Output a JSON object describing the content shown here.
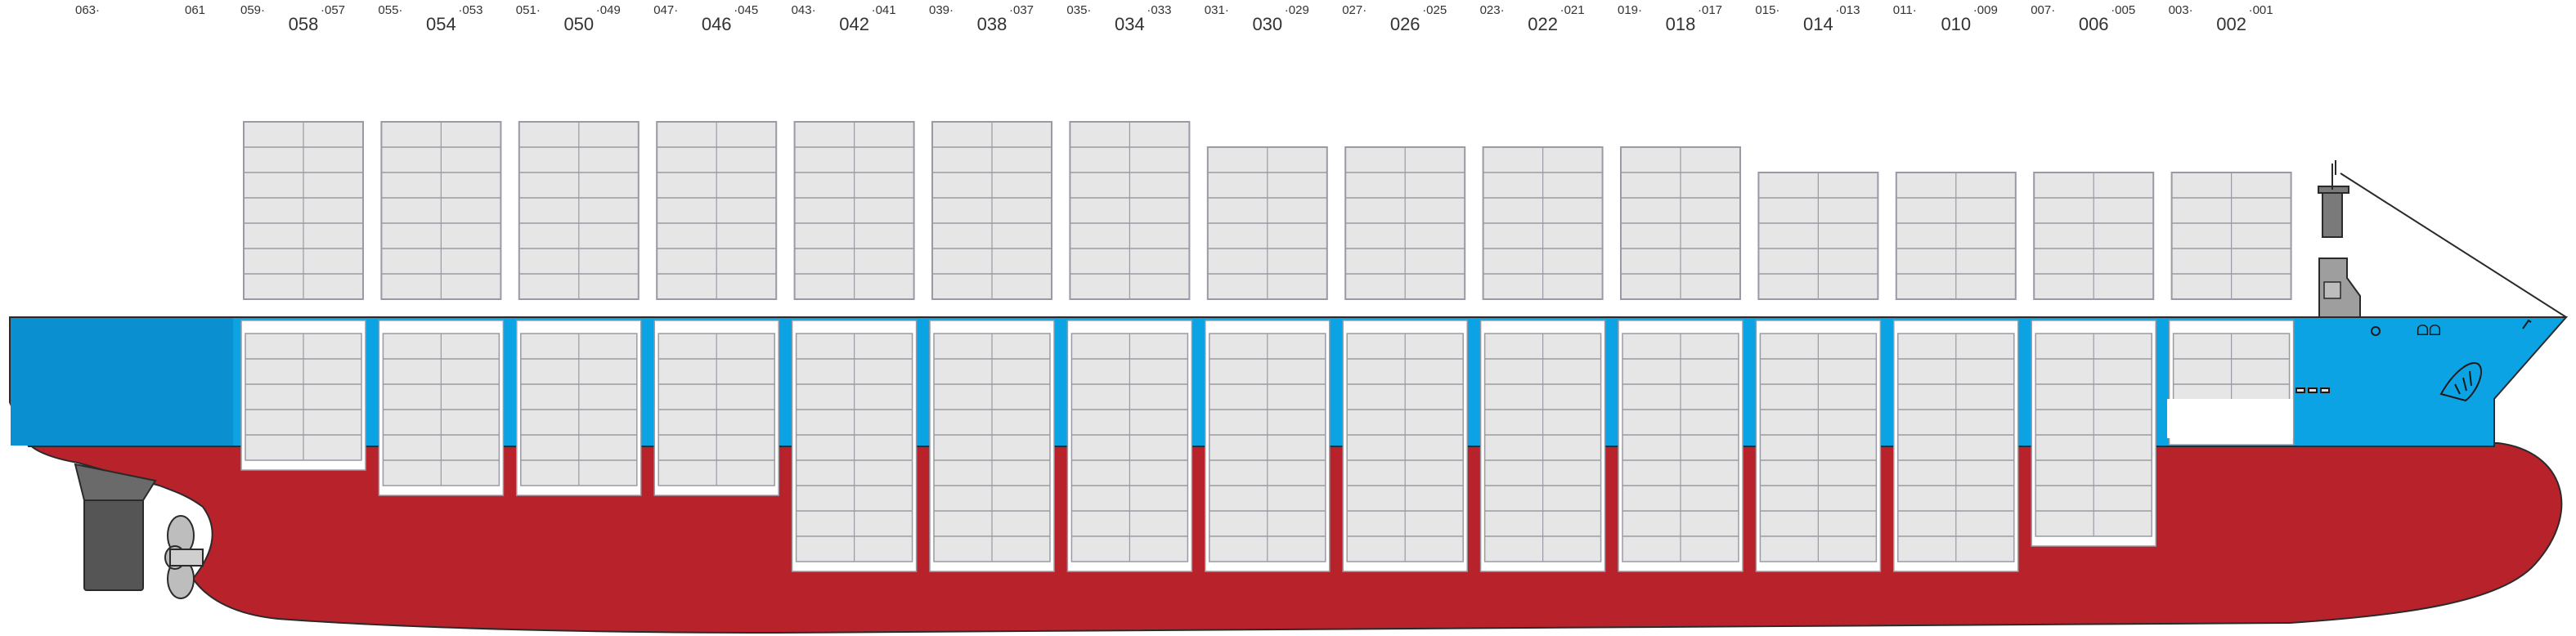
{
  "colors": {
    "hull_red": "#b8222b",
    "deck_blue": "#0ba3e4",
    "deck_blue_dark": "#0a8fd0",
    "container_fill": "#e6e6e7",
    "container_edge": "#9a9aa4",
    "outline": "#2a2a2a",
    "rudder": "#555555",
    "propeller": "#bdbdbd"
  },
  "labels": {
    "stern_left": "063·",
    "stern_right": "061"
  },
  "bays": [
    {
      "big": "058",
      "left": "059·",
      "right": "·057",
      "above_tiers": 7,
      "below_tiers": 5
    },
    {
      "big": "054",
      "left": "055·",
      "right": "·053",
      "above_tiers": 7,
      "below_tiers": 6
    },
    {
      "big": "050",
      "left": "051·",
      "right": "·049",
      "above_tiers": 7,
      "below_tiers": 6
    },
    {
      "big": "046",
      "left": "047·",
      "right": "·045",
      "above_tiers": 7,
      "below_tiers": 6
    },
    {
      "big": "042",
      "left": "043·",
      "right": "·041",
      "above_tiers": 7,
      "below_tiers": 9
    },
    {
      "big": "038",
      "left": "039·",
      "right": "·037",
      "above_tiers": 7,
      "below_tiers": 9
    },
    {
      "big": "034",
      "left": "035·",
      "right": "·033",
      "above_tiers": 7,
      "below_tiers": 9
    },
    {
      "big": "030",
      "left": "031·",
      "right": "·029",
      "above_tiers": 6,
      "below_tiers": 9
    },
    {
      "big": "026",
      "left": "027·",
      "right": "·025",
      "above_tiers": 6,
      "below_tiers": 9
    },
    {
      "big": "022",
      "left": "023·",
      "right": "·021",
      "above_tiers": 6,
      "below_tiers": 9
    },
    {
      "big": "018",
      "left": "019·",
      "right": "·017",
      "above_tiers": 6,
      "below_tiers": 9
    },
    {
      "big": "014",
      "left": "015·",
      "right": "·013",
      "above_tiers": 5,
      "below_tiers": 9
    },
    {
      "big": "010",
      "left": "011·",
      "right": "·009",
      "above_tiers": 5,
      "below_tiers": 9
    },
    {
      "big": "006",
      "left": "007·",
      "right": "·005",
      "above_tiers": 5,
      "below_tiers": 8
    },
    {
      "big": "002",
      "left": "003·",
      "right": "·001",
      "above_tiers": 5,
      "below_tiers": 4
    }
  ]
}
